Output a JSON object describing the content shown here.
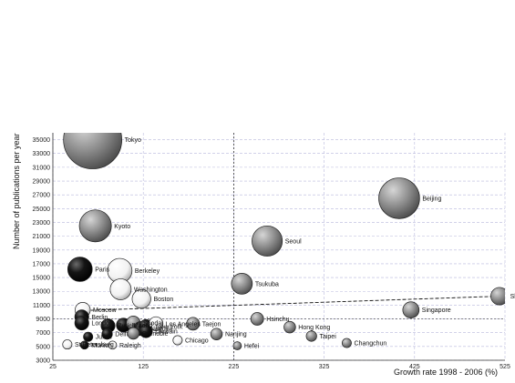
{
  "chart_data": {
    "type": "scatter",
    "title": "",
    "xlabel": "Growth rate 1998 - 2006 (%)",
    "ylabel": "Number of publications per year",
    "xlim": [
      25,
      525
    ],
    "ylim": [
      3000,
      36000
    ],
    "x_ticks": [
      "25",
      "125",
      "225",
      "325",
      "425",
      "525"
    ],
    "y_ticks": [
      "3000",
      "5000",
      "7000",
      "9000",
      "11000",
      "13000",
      "15000",
      "17000",
      "19000",
      "21000",
      "23000",
      "25000",
      "27000",
      "29000",
      "31000",
      "33000",
      "35000"
    ],
    "grid": true,
    "reference_lines": {
      "x": 225,
      "y": 9000
    },
    "trend_line": {
      "from": [
        55,
        10200
      ],
      "to": [
        520,
        12300
      ]
    },
    "colors": {
      "black": "#111111",
      "gray": "#808080",
      "white": "#f4f4f4"
    },
    "points": [
      {
        "label": "Tokyo",
        "x": 69,
        "y": 35000,
        "size": 1.0,
        "shade": "gray"
      },
      {
        "label": "Kyoto",
        "x": 72,
        "y": 22500,
        "size": 0.55,
        "shade": "gray"
      },
      {
        "label": "Paris",
        "x": 55,
        "y": 16200,
        "size": 0.42,
        "shade": "black"
      },
      {
        "label": "Berkeley",
        "x": 99,
        "y": 16000,
        "size": 0.42,
        "shade": "white"
      },
      {
        "label": "Washington",
        "x": 100,
        "y": 13300,
        "size": 0.36,
        "shade": "white"
      },
      {
        "label": "Boston",
        "x": 123,
        "y": 11900,
        "size": 0.32,
        "shade": "white"
      },
      {
        "label": "Moscow",
        "x": 58,
        "y": 10300,
        "size": 0.26,
        "shade": "white"
      },
      {
        "label": "Berlin",
        "x": 57,
        "y": 9300,
        "size": 0.24,
        "shade": "black"
      },
      {
        "label": "London",
        "x": 57,
        "y": 8400,
        "size": 0.24,
        "shade": "black"
      },
      {
        "label": "Zurich",
        "x": 86,
        "y": 8000,
        "size": 0.24,
        "shade": "black"
      },
      {
        "label": "Madrid",
        "x": 103,
        "y": 8100,
        "size": 0.24,
        "shade": "black"
      },
      {
        "label": "Seodal",
        "x": 114,
        "y": 8400,
        "size": 0.24,
        "shade": "gray"
      },
      {
        "label": "Nagoya",
        "x": 122,
        "y": 7600,
        "size": 0.24,
        "shade": "black"
      },
      {
        "label": "New York",
        "x": 128,
        "y": 7900,
        "size": 0.24,
        "shade": "black"
      },
      {
        "label": "Los Angeles",
        "x": 139,
        "y": 8300,
        "size": 0.24,
        "shade": "white"
      },
      {
        "label": "Louvain",
        "x": 128,
        "y": 7200,
        "size": 0.22,
        "shade": "black"
      },
      {
        "label": "Grenoble",
        "x": 114,
        "y": 6900,
        "size": 0.2,
        "shade": "gray"
      },
      {
        "label": "Delft",
        "x": 85,
        "y": 6800,
        "size": 0.18,
        "shade": "black"
      },
      {
        "label": "Julich",
        "x": 64,
        "y": 6400,
        "size": 0.16,
        "shade": "black"
      },
      {
        "label": "Munich",
        "x": 60,
        "y": 5200,
        "size": 0.14,
        "shade": "black"
      },
      {
        "label": "St Petersburg",
        "x": 41,
        "y": 5300,
        "size": 0.16,
        "shade": "white"
      },
      {
        "label": "Raleigh",
        "x": 91,
        "y": 5200,
        "size": 0.14,
        "shade": "white"
      },
      {
        "label": "Chicago",
        "x": 163,
        "y": 5900,
        "size": 0.16,
        "shade": "white"
      },
      {
        "label": "Taejon",
        "x": 180,
        "y": 8300,
        "size": 0.22,
        "shade": "gray"
      },
      {
        "label": "Nanjing",
        "x": 206,
        "y": 6800,
        "size": 0.2,
        "shade": "gray"
      },
      {
        "label": "Hefei",
        "x": 229,
        "y": 5100,
        "size": 0.14,
        "shade": "gray"
      },
      {
        "label": "Seoul",
        "x": 262,
        "y": 20300,
        "size": 0.52,
        "shade": "gray"
      },
      {
        "label": "Tsukuba",
        "x": 234,
        "y": 14100,
        "size": 0.36,
        "shade": "gray"
      },
      {
        "label": "Hsinchu",
        "x": 251,
        "y": 9000,
        "size": 0.22,
        "shade": "gray"
      },
      {
        "label": "Hong Kong",
        "x": 287,
        "y": 7800,
        "size": 0.2,
        "shade": "gray"
      },
      {
        "label": "Taipei",
        "x": 311,
        "y": 6500,
        "size": 0.18,
        "shade": "gray"
      },
      {
        "label": "Changchun",
        "x": 350,
        "y": 5500,
        "size": 0.16,
        "shade": "gray"
      },
      {
        "label": "Beijing",
        "x": 408,
        "y": 26500,
        "size": 0.7,
        "shade": "gray"
      },
      {
        "label": "Singapore",
        "x": 421,
        "y": 10300,
        "size": 0.28,
        "shade": "gray"
      },
      {
        "label": "Shanghai",
        "x": 519,
        "y": 12300,
        "size": 0.3,
        "shade": "gray"
      }
    ]
  }
}
